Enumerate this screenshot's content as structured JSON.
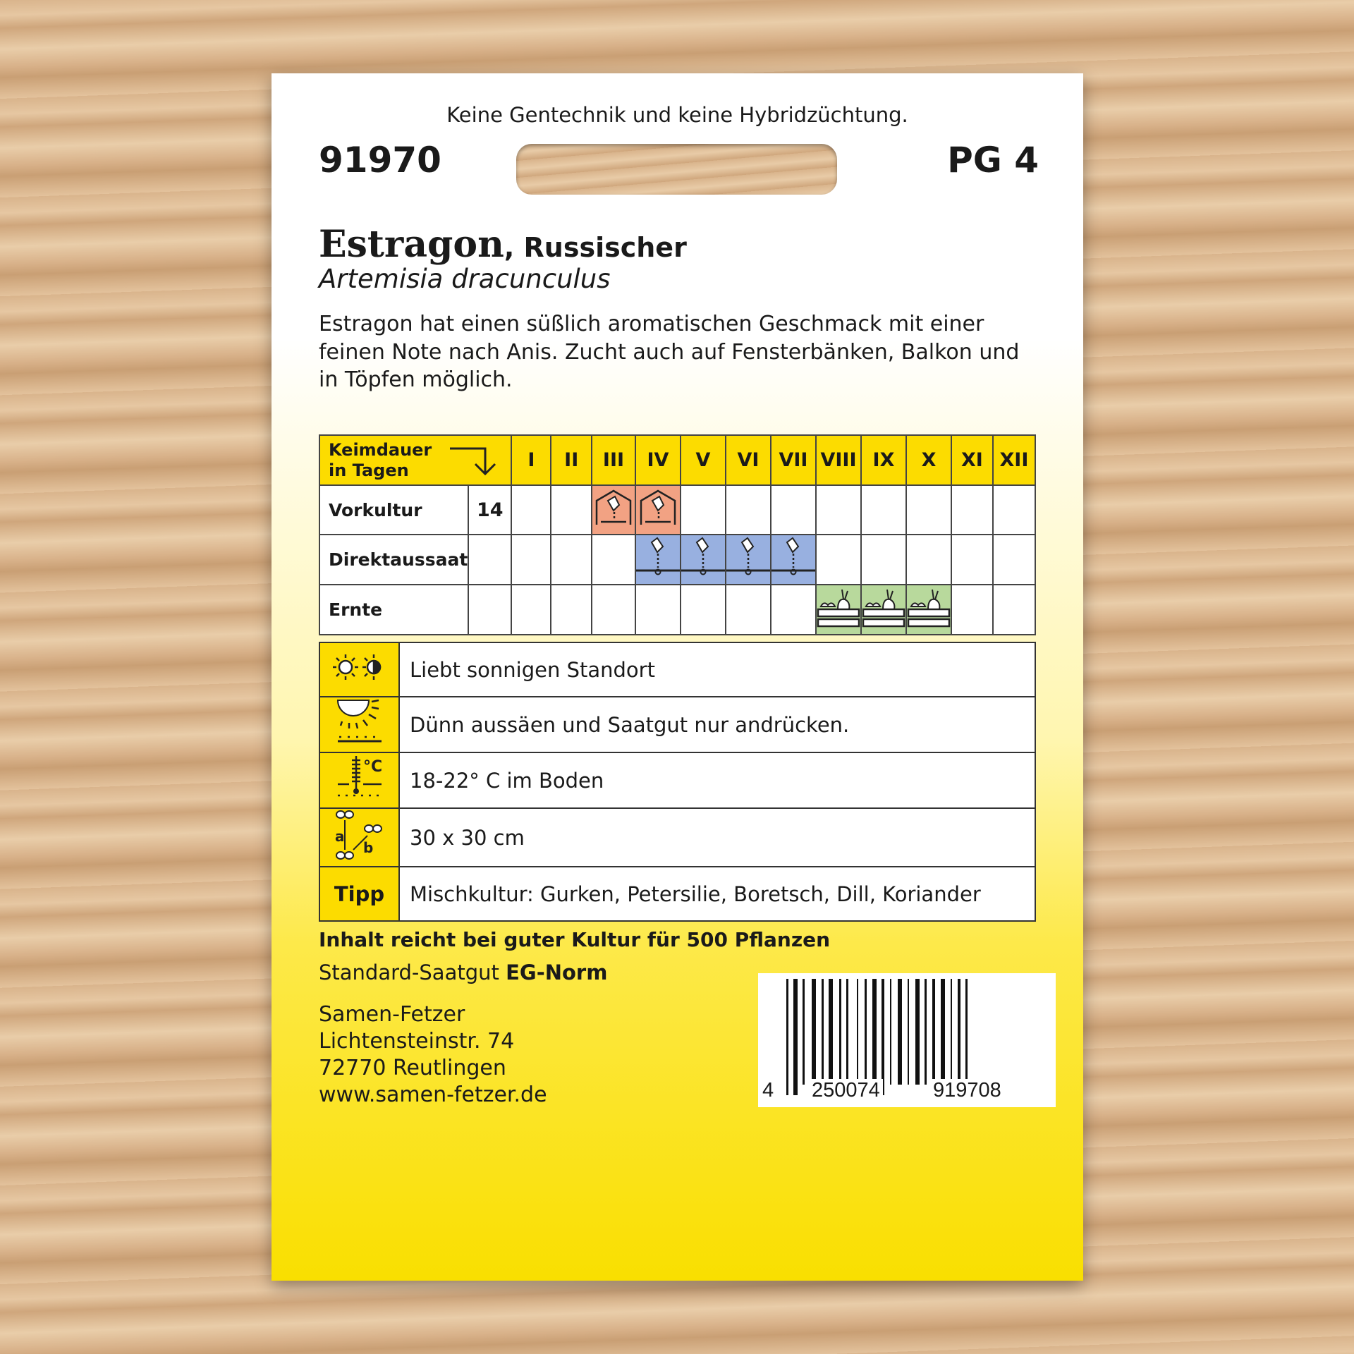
{
  "header": {
    "notice": "Keine Gentechnik und keine Hybridzüchtung.",
    "article_no": "91970",
    "price_group": "PG 4"
  },
  "product": {
    "name": "Estragon",
    "variety": ", Russischer",
    "latin": "Artemisia dracunculus",
    "description": [
      "Estragon hat einen süßlich aromatischen Geschmack mit einer",
      "feinen Note nach Anis. Zucht auch auf Fensterbänken, Balkon und",
      "in Töpfen möglich."
    ]
  },
  "calendar": {
    "header_label_1": "Keimdauer",
    "header_label_2": "in Tagen",
    "months": [
      "I",
      "II",
      "III",
      "IV",
      "V",
      "VI",
      "VII",
      "VIII",
      "IX",
      "X",
      "XI",
      "XII"
    ],
    "rows": [
      {
        "label": "Vorkultur",
        "days": "14",
        "active": [
          3,
          4
        ],
        "color": "#f2a283",
        "icon": "greenhouse-seed-icon"
      },
      {
        "label": "Direktaussaat",
        "days": "",
        "active": [
          4,
          5,
          6,
          7
        ],
        "color": "#98b0e0",
        "icon": "direct-sowing-icon"
      },
      {
        "label": "Ernte",
        "days": "",
        "active": [
          8,
          9,
          10
        ],
        "color": "#b8d99c",
        "icon": "harvest-crate-icon"
      }
    ]
  },
  "info": [
    {
      "icon": "sun-halfshade-icon",
      "text": "Liebt sonnigen Standort"
    },
    {
      "icon": "light-germinator-icon",
      "text": "Dünn aussäen und Saatgut nur andrücken."
    },
    {
      "icon": "soil-thermometer-icon",
      "text": "18-22° C im Boden"
    },
    {
      "icon": "plant-spacing-icon",
      "text": "30 x 30 cm"
    },
    {
      "icon": "",
      "label": "Tipp",
      "text": "Mischkultur: Gurken, Petersilie, Boretsch, Dill, Koriander"
    }
  ],
  "footer": {
    "content": "Inhalt reicht bei guter Kultur für 500 Pflanzen",
    "standard_prefix": "Standard-Saatgut ",
    "standard_bold": "EG-Norm",
    "address": [
      "Samen-Fetzer",
      "Lichtensteinstr. 74",
      "72770 Reutlingen",
      "www.samen-fetzer.de"
    ]
  },
  "barcode": {
    "first": "4",
    "left": "250074",
    "right": "919708"
  },
  "colors": {
    "yellow": "#fcdc00",
    "salmon": "#f2a283",
    "blue": "#98b0e0",
    "green": "#b8d99c"
  }
}
